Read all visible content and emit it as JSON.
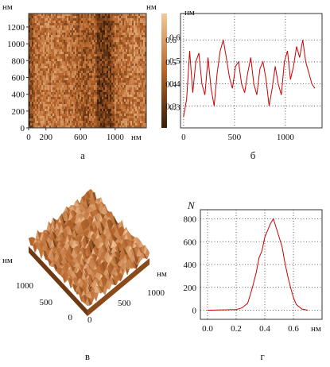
{
  "colors": {
    "afm_dark": "#3a1c08",
    "afm_mid": "#b8662c",
    "afm_light": "#f3c89a",
    "series": "#cc0000",
    "axis": "#333333"
  },
  "chart_data": [
    {
      "id": "a",
      "type": "heatmap",
      "caption": "а",
      "xlim": [
        0,
        1360
      ],
      "ylim": [
        0,
        1360
      ],
      "x_ticks": [
        "0",
        "200",
        "600",
        "1000"
      ],
      "y_ticks": [
        "0",
        "200",
        "400",
        "600",
        "800",
        "1000",
        "1200"
      ],
      "x_unit": "нм",
      "y_unit": "нм",
      "colorbar": {
        "unit": "нм",
        "range": [
          0.21,
          0.7
        ],
        "ticks": [
          "0.3",
          "0.4",
          "0.5",
          "0.6"
        ],
        "colors": [
          "#3a1c08",
          "#b8662c",
          "#f3c89a"
        ]
      }
    },
    {
      "id": "b",
      "type": "line",
      "caption": "б",
      "xlim": [
        -30,
        1360
      ],
      "ylim": [
        0.2,
        0.72
      ],
      "x_ticks": [
        "0",
        "500",
        "1000"
      ],
      "y_ticks": [
        "0.3",
        "0.4",
        "0.5",
        "0.6"
      ],
      "y_unit": "нм",
      "x_unit": "",
      "grid": true,
      "series": [
        {
          "color": "#cc0000",
          "x": [
            0,
            30,
            60,
            90,
            120,
            150,
            180,
            210,
            240,
            270,
            300,
            330,
            360,
            390,
            420,
            450,
            480,
            510,
            540,
            570,
            600,
            630,
            660,
            690,
            720,
            750,
            780,
            810,
            840,
            870,
            900,
            930,
            960,
            990,
            1020,
            1050,
            1080,
            1110,
            1140,
            1170,
            1200,
            1230,
            1260,
            1290
          ],
          "y": [
            0.25,
            0.33,
            0.55,
            0.36,
            0.5,
            0.54,
            0.4,
            0.35,
            0.52,
            0.38,
            0.3,
            0.45,
            0.55,
            0.6,
            0.52,
            0.43,
            0.38,
            0.48,
            0.5,
            0.4,
            0.36,
            0.45,
            0.52,
            0.4,
            0.35,
            0.47,
            0.5,
            0.42,
            0.3,
            0.38,
            0.48,
            0.4,
            0.35,
            0.5,
            0.55,
            0.42,
            0.48,
            0.57,
            0.52,
            0.6,
            0.5,
            0.45,
            0.4,
            0.38
          ]
        }
      ]
    },
    {
      "id": "v",
      "type": "surface",
      "caption": "в",
      "x_unit": "нм",
      "y_unit": "нм",
      "x_ticks": [
        "0",
        "500",
        "1000"
      ],
      "y_ticks": [
        "0",
        "500",
        "1000"
      ]
    },
    {
      "id": "g",
      "type": "line",
      "caption": "г",
      "xlim": [
        -0.05,
        0.8
      ],
      "ylim": [
        -80,
        880
      ],
      "x_ticks": [
        "0.0",
        "0.2",
        "0.4",
        "0.6"
      ],
      "y_ticks": [
        "0",
        "200",
        "400",
        "600",
        "800"
      ],
      "x_unit": "нм",
      "y_label": "N",
      "grid": true,
      "series": [
        {
          "color": "#cc0000",
          "x": [
            0.0,
            0.2,
            0.24,
            0.28,
            0.3,
            0.32,
            0.34,
            0.36,
            0.38,
            0.4,
            0.42,
            0.44,
            0.46,
            0.48,
            0.5,
            0.52,
            0.54,
            0.56,
            0.58,
            0.6,
            0.62,
            0.66,
            0.7
          ],
          "y": [
            0,
            5,
            20,
            60,
            140,
            230,
            330,
            460,
            520,
            640,
            700,
            760,
            800,
            720,
            640,
            560,
            420,
            300,
            200,
            110,
            50,
            10,
            0
          ]
        }
      ]
    }
  ]
}
